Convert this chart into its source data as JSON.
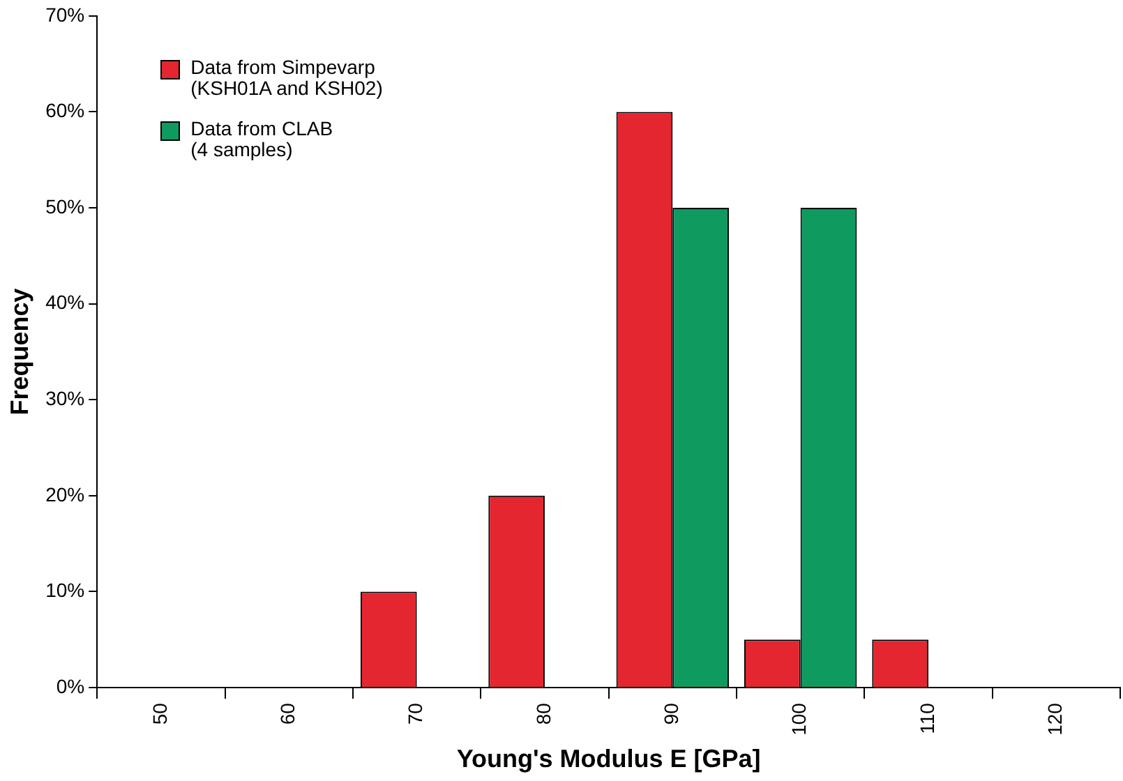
{
  "chart_data": {
    "type": "bar",
    "xlabel": "Young's Modulus E [GPa]",
    "ylabel": "Frequency",
    "categories": [
      "50",
      "60",
      "70",
      "80",
      "90",
      "100",
      "110",
      "120"
    ],
    "series": [
      {
        "name": "Data from Simpevarp\n(KSH01A and KSH02)",
        "color": "#e3262f",
        "values": [
          0,
          0,
          10,
          20,
          60,
          5,
          5,
          0
        ]
      },
      {
        "name": "Data from CLAB\n(4 samples)",
        "color": "#0f9a5f",
        "values": [
          0,
          0,
          0,
          0,
          50,
          50,
          0,
          0
        ]
      }
    ],
    "ylim": [
      0,
      70
    ],
    "yticks": [
      {
        "value": 0,
        "label": "0%"
      },
      {
        "value": 10,
        "label": "10%"
      },
      {
        "value": 20,
        "label": "20%"
      },
      {
        "value": 30,
        "label": "30%"
      },
      {
        "value": 40,
        "label": "40%"
      },
      {
        "value": 50,
        "label": "50%"
      },
      {
        "value": 60,
        "label": "60%"
      },
      {
        "value": 70,
        "label": "70%"
      }
    ],
    "grid": false,
    "legend": "top left"
  }
}
